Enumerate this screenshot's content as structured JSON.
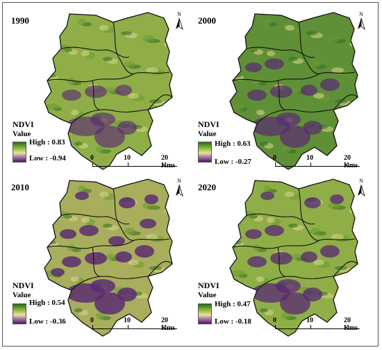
{
  "panels": [
    {
      "year": "1990",
      "high": "High : 0.83",
      "low": "Low : -0.94",
      "purple_level": 0.25
    },
    {
      "year": "2000",
      "high": "High : 0.63",
      "low": "Low : -0.27",
      "purple_level": 0.35
    },
    {
      "year": "2010",
      "high": "High : 0.54",
      "low": "Low : -0.36",
      "purple_level": 0.55
    },
    {
      "year": "2020",
      "high": "High : 0.47",
      "low": "Low : -0.18",
      "purple_level": 0.45
    }
  ],
  "legend": {
    "title": "NDVI",
    "subtitle": "Value"
  },
  "north_label": "N",
  "scale": {
    "t0": "0",
    "t1": "10",
    "t2": "20 Kms"
  },
  "colors": {
    "high": "#2a6a1e",
    "mid": "#e6e39a",
    "low": "#4a1c5e",
    "boundary": "#111111"
  }
}
